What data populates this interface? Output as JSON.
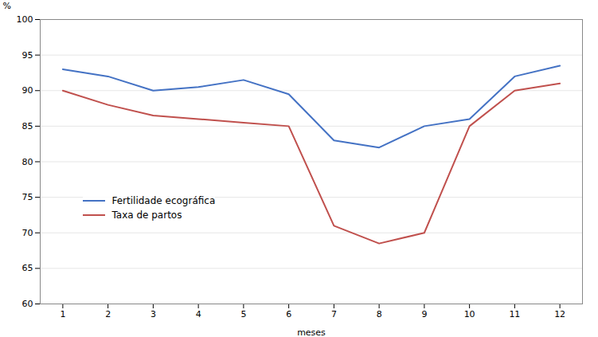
{
  "chart_data": {
    "type": "line",
    "x": [
      1,
      2,
      3,
      4,
      5,
      6,
      7,
      8,
      9,
      10,
      11,
      12
    ],
    "series": [
      {
        "name": "Fertilidade ecográfica",
        "color": "#4472C4",
        "values": [
          93,
          92,
          90,
          90.5,
          91.5,
          89.5,
          83,
          82,
          85,
          86,
          92,
          93.5
        ]
      },
      {
        "name": "Taxa de partos",
        "color": "#C0504D",
        "values": [
          90,
          88,
          86.5,
          86,
          85.5,
          85,
          71,
          68.5,
          70,
          85,
          90,
          91
        ]
      }
    ],
    "xlabel": "meses",
    "ylabel": "%",
    "xlim": [
      0.5,
      12.5
    ],
    "xticks": [
      1,
      2,
      3,
      4,
      5,
      6,
      7,
      8,
      9,
      10,
      11,
      12
    ],
    "ylim": [
      60,
      100
    ],
    "yticks": [
      60,
      65,
      70,
      75,
      80,
      85,
      90,
      95,
      100
    ],
    "grid": "y",
    "legend": "lower left"
  }
}
